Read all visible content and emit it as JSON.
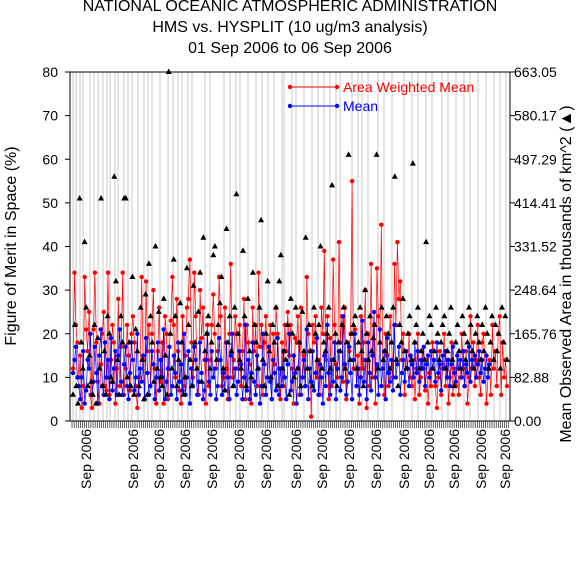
{
  "chart_data": {
    "type": "line",
    "title": [
      "NATIONAL OCEANIC ATMOSPHERIC ADMINISTRATION",
      "HMS vs. HYSPLIT (10 ug/m3 analysis)",
      "01 Sep 2006 to 06 Sep 2006"
    ],
    "ylabel": "Figure of Merit in Space (%)",
    "y2label": "Mean Observed Area in thousands of km^2 (▲)",
    "ylim": [
      0,
      80
    ],
    "y_ticks": [
      "0",
      "10",
      "20",
      "30",
      "40",
      "50",
      "60",
      "70",
      "80"
    ],
    "y2_ticks": [
      "0.00",
      "82.88",
      "165.76",
      "248.64",
      "331.52",
      "414.41",
      "497.29",
      "580.17",
      "663.05"
    ],
    "x_tick_labels": [
      "Sep 2006",
      "Sep 2006",
      "Sep 2006",
      "Sep 2006",
      "Sep 2006",
      "Sep 2006",
      "Sep 2006",
      "Sep 2006",
      "Sep 2006",
      "Sep 2006",
      "Sep 2006",
      "Sep 2006",
      "Sep 2006",
      "Sep 2006",
      "Sep 2006",
      "Sep 2006"
    ],
    "legend_position": "top-right",
    "grid": "vertical",
    "colors": {
      "area_weighted": "#ff0000",
      "mean": "#0000ff",
      "area": "#000000"
    },
    "series": [
      {
        "name": "Area Weighted Mean",
        "marker": "dot",
        "color": "#ff0000",
        "values": [
          12,
          34,
          22,
          18,
          10,
          15,
          3,
          8,
          33,
          21,
          16,
          25,
          6,
          3,
          21,
          34,
          18,
          9,
          4,
          13,
          20,
          25,
          8,
          7,
          34,
          6,
          14,
          22,
          18,
          4,
          12,
          28,
          8,
          17,
          34,
          6,
          12,
          22,
          15,
          7,
          20,
          24,
          18,
          8,
          3,
          10,
          12,
          33,
          14,
          5,
          32,
          16,
          22,
          8,
          20,
          30,
          12,
          4,
          16,
          26,
          9,
          18,
          4,
          24,
          20,
          5,
          17,
          23,
          33,
          22,
          10,
          28,
          16,
          7,
          4,
          24,
          8,
          15,
          26,
          28,
          37,
          18,
          10,
          34,
          24,
          12,
          6,
          30,
          19,
          26,
          14,
          4,
          22,
          8,
          14,
          22,
          29,
          20,
          12,
          16,
          33,
          24,
          8,
          10,
          26,
          12,
          5,
          20,
          36,
          10,
          14,
          24,
          20,
          12,
          22,
          8,
          16,
          28,
          5,
          22,
          18,
          13,
          4,
          26,
          16,
          22,
          8,
          34,
          17,
          22,
          6,
          18,
          24,
          10,
          17,
          22,
          5,
          20,
          13,
          26,
          20,
          12,
          5,
          18,
          8,
          22,
          16,
          25,
          15,
          22,
          12,
          4,
          19,
          18,
          24,
          6,
          26,
          10,
          15,
          8,
          33,
          20,
          16,
          1,
          22,
          18,
          24,
          10,
          14,
          6,
          26,
          20,
          39,
          14,
          24,
          5,
          19,
          8,
          37,
          22,
          13,
          10,
          41,
          18,
          24,
          9,
          26,
          5,
          18,
          16,
          20,
          55,
          12,
          21,
          8,
          15,
          4,
          24,
          12,
          18,
          30,
          3,
          20,
          8,
          36,
          10,
          22,
          4,
          35,
          24,
          18,
          45,
          12,
          6,
          20,
          15,
          8,
          24,
          18,
          10,
          36,
          22,
          41,
          28,
          32,
          14,
          20,
          6,
          16,
          12,
          20,
          10,
          8,
          14,
          5,
          12,
          20,
          6,
          10,
          16,
          12,
          7,
          14,
          4,
          11,
          8,
          18,
          14,
          8,
          3,
          10,
          16,
          6,
          12,
          20,
          8,
          14,
          4,
          10,
          18,
          6,
          12,
          8,
          15,
          6,
          10,
          20,
          12,
          8,
          16,
          4,
          10,
          24,
          12,
          18,
          8,
          14,
          22,
          10,
          6,
          18,
          20,
          12,
          4,
          10,
          14,
          6,
          22,
          12,
          16,
          8,
          20,
          24,
          6,
          18,
          10,
          14,
          8
        ]
      },
      {
        "name": "Mean",
        "marker": "dot",
        "color": "#0000ff",
        "values": [
          11,
          14,
          17,
          10,
          8,
          5,
          10,
          16,
          4,
          7,
          14,
          12,
          20,
          6,
          9,
          17,
          11,
          4,
          15,
          21,
          8,
          6,
          18,
          10,
          14,
          5,
          19,
          7,
          12,
          16,
          6,
          15,
          21,
          9,
          6,
          13,
          17,
          8,
          5,
          11,
          18,
          14,
          7,
          10,
          20,
          6,
          12,
          9,
          15,
          5,
          19,
          11,
          6,
          8,
          16,
          13,
          5,
          10,
          18,
          7,
          14,
          10,
          21,
          5,
          9,
          12,
          17,
          6,
          8,
          15,
          11,
          5,
          18,
          9,
          13,
          7,
          20,
          6,
          10,
          16,
          4,
          12,
          8,
          17,
          14,
          6,
          9,
          18,
          11,
          5,
          7,
          14,
          20,
          9,
          6,
          16,
          10,
          12,
          5,
          8,
          19,
          14,
          6,
          11,
          7,
          18,
          10,
          5,
          15,
          20,
          8,
          12,
          6,
          9,
          16,
          13,
          5,
          10,
          22,
          7,
          14,
          5,
          11,
          18,
          9,
          6,
          15,
          12,
          4,
          8,
          20,
          13,
          6,
          10,
          17,
          9,
          5,
          14,
          11,
          7,
          19,
          6,
          12,
          8,
          16,
          10,
          5,
          13,
          20,
          7,
          9,
          15,
          11,
          4,
          12,
          18,
          6,
          10,
          14,
          8,
          21,
          5,
          12,
          9,
          16,
          7,
          11,
          19,
          6,
          13,
          10,
          4,
          15,
          8,
          22,
          11,
          6,
          14,
          9,
          18,
          5,
          12,
          16,
          7,
          10,
          24,
          13,
          6,
          9,
          17,
          11,
          5,
          14,
          20,
          8,
          12,
          6,
          10,
          23,
          9,
          14,
          5,
          18,
          11,
          7,
          15,
          25,
          10,
          13,
          6,
          21,
          8,
          12,
          16,
          5,
          19,
          11,
          9,
          14,
          7,
          22,
          10,
          13,
          17,
          6,
          11,
          14,
          9,
          16,
          12,
          8,
          15,
          13,
          10,
          18,
          11,
          16,
          9,
          14,
          12,
          17,
          8,
          13,
          15,
          10,
          16,
          12,
          14,
          9,
          18,
          11,
          13,
          7,
          15,
          12,
          16,
          10,
          14,
          8,
          13,
          17,
          11,
          9,
          15,
          12,
          14,
          10,
          16,
          8,
          13,
          11,
          17,
          9,
          14,
          12,
          15,
          10,
          13,
          16,
          11,
          14,
          9,
          12,
          15,
          10,
          13
        ]
      },
      {
        "name": "Mean Observed Area (▲)",
        "marker": "triangle",
        "color": "#000000",
        "axis": "right",
        "values": [
          6,
          22,
          8,
          4,
          51,
          18,
          12,
          41,
          26,
          8,
          15,
          9,
          6,
          22,
          4,
          19,
          12,
          51,
          8,
          16,
          6,
          24,
          20,
          10,
          9,
          56,
          32,
          14,
          6,
          24,
          18,
          51,
          51,
          10,
          18,
          8,
          33,
          6,
          21,
          16,
          8,
          26,
          14,
          5,
          29,
          6,
          36,
          24,
          18,
          9,
          40,
          12,
          25,
          10,
          8,
          28,
          15,
          6,
          80,
          20,
          12,
          37,
          24,
          8,
          14,
          27,
          18,
          6,
          10,
          35,
          22,
          14,
          8,
          31,
          18,
          12,
          25,
          34,
          9,
          42,
          16,
          20,
          24,
          12,
          18,
          38,
          40,
          14,
          22,
          27,
          33,
          12,
          7,
          44,
          18,
          24,
          16,
          8,
          26,
          52,
          20,
          14,
          12,
          39,
          24,
          8,
          28,
          16,
          10,
          34,
          22,
          18,
          12,
          26,
          46,
          14,
          8,
          20,
          32,
          16,
          10,
          22,
          18,
          26,
          8,
          32,
          38,
          12,
          16,
          14,
          22,
          6,
          28,
          20,
          10,
          26,
          12,
          18,
          8,
          25,
          16,
          42,
          12,
          22,
          16,
          8,
          26,
          20,
          14,
          22,
          40,
          12,
          18,
          16,
          20,
          26,
          12,
          54,
          14,
          20,
          8,
          18,
          16,
          22,
          26,
          12,
          18,
          61,
          14,
          20,
          22,
          24,
          12,
          18,
          26,
          16,
          8,
          30,
          20,
          14,
          24,
          16,
          19,
          22,
          61,
          12,
          18,
          26,
          14,
          16,
          24,
          20,
          12,
          18,
          26,
          56,
          14,
          8,
          22,
          18,
          28,
          16,
          12,
          20,
          24,
          14,
          59,
          18,
          22,
          26,
          12,
          16,
          20,
          14,
          41,
          18,
          24,
          22,
          12,
          16,
          26,
          20,
          14,
          18,
          22,
          24,
          12,
          16,
          20,
          26,
          14,
          8,
          18,
          22,
          16,
          12,
          24,
          20,
          14,
          18,
          26,
          22,
          16,
          12,
          20,
          24,
          18,
          14,
          22,
          16,
          26,
          20,
          12,
          18,
          24,
          14,
          22,
          16,
          20,
          12,
          26,
          18,
          24,
          14
        ]
      }
    ]
  }
}
